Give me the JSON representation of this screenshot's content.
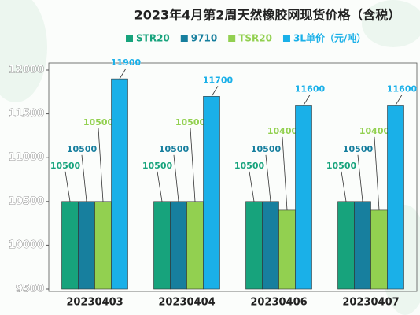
{
  "chart_data": {
    "type": "bar",
    "title": "2023年4月第2周天然橡胶网现货价格（含税）",
    "categories": [
      "20230403",
      "20230404",
      "20230406",
      "20230407"
    ],
    "series": [
      {
        "name": "STR20",
        "color": "#17a37c",
        "values": [
          10500,
          10500,
          10500,
          10500
        ]
      },
      {
        "name": "9710",
        "color": "#177f9e",
        "values": [
          10500,
          10500,
          10500,
          10500
        ]
      },
      {
        "name": "TSR20",
        "color": "#92d050",
        "values": [
          10500,
          10500,
          10400,
          10400
        ]
      },
      {
        "name": "3L单价（元/吨）",
        "color": "#1ab0e8",
        "values": [
          11900,
          11700,
          11600,
          11600
        ]
      }
    ],
    "ylim": [
      9500,
      12000
    ],
    "yticks": [
      9500,
      10000,
      10500,
      11000,
      11500,
      12000
    ],
    "legend": "top"
  }
}
